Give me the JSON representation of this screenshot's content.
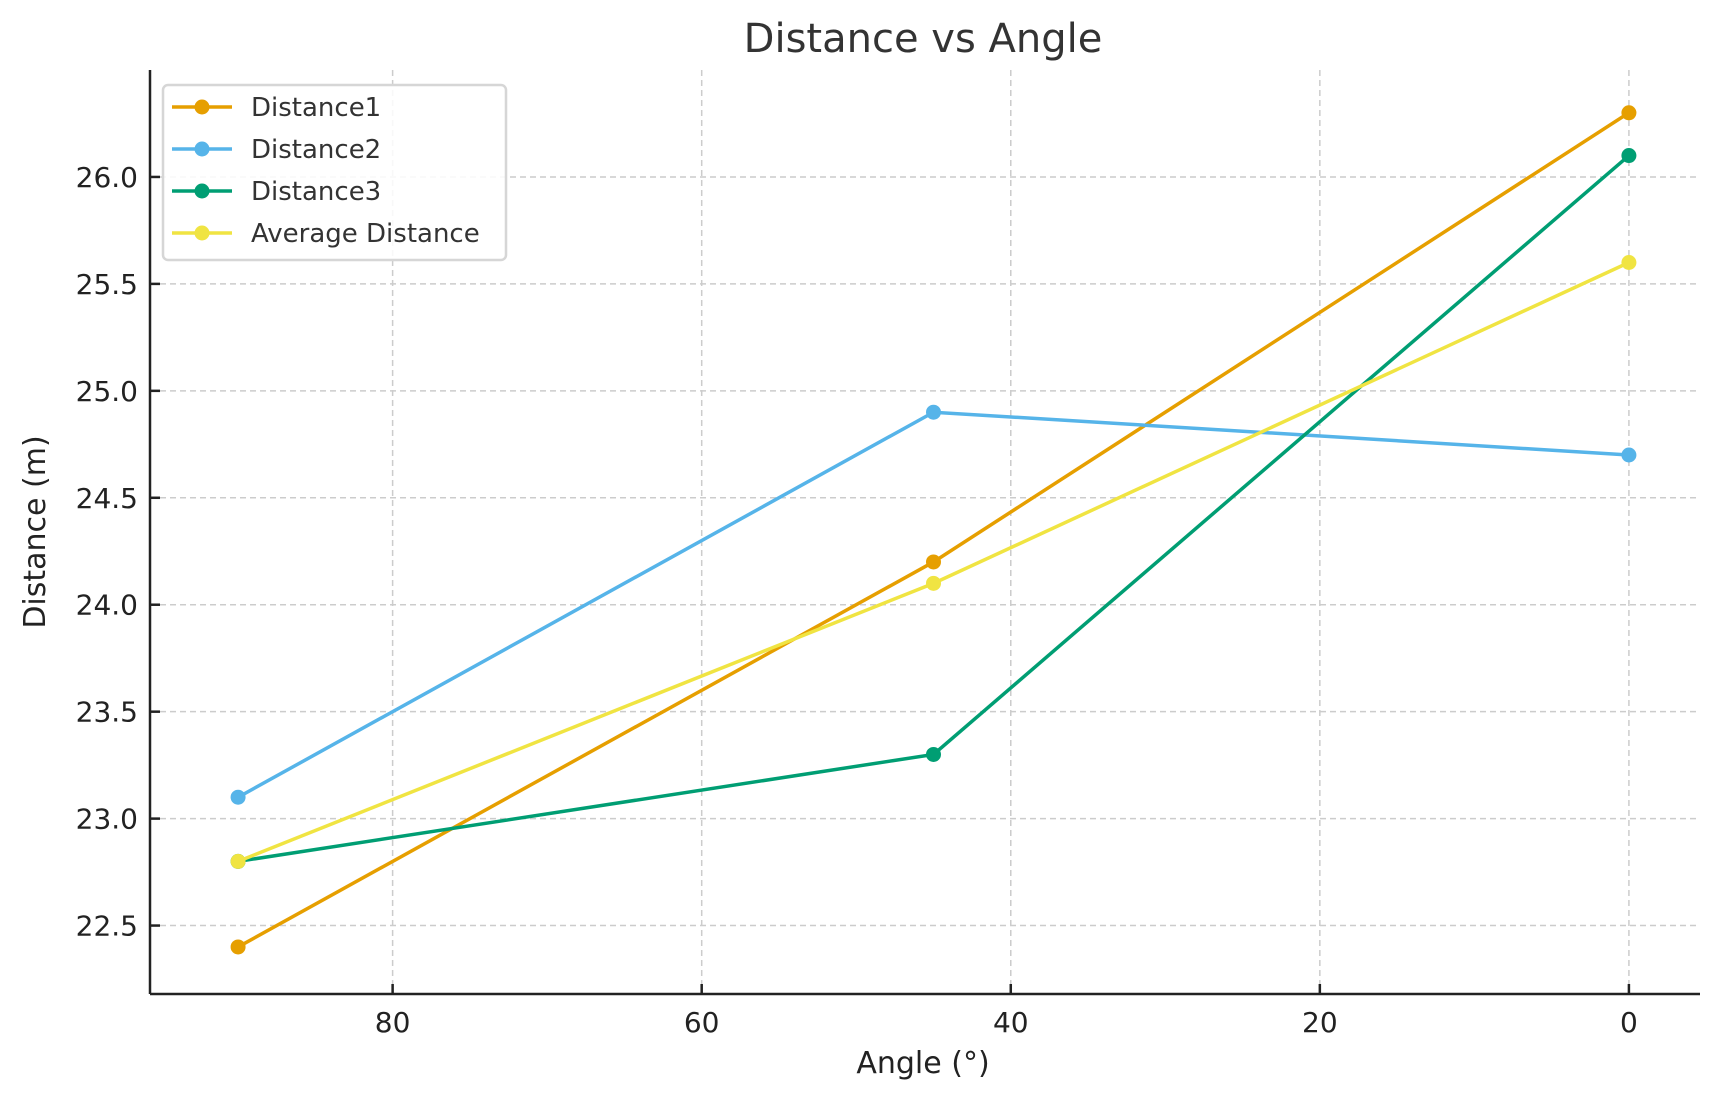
{
  "chart_data": {
    "type": "line",
    "title": "Distance vs Angle",
    "xlabel": "Angle (°)",
    "ylabel": "Distance (m)",
    "x": [
      90,
      45,
      0
    ],
    "xlim": [
      95.7,
      -4.6
    ],
    "ylim": [
      22.18,
      26.5
    ],
    "xticks": [
      80,
      60,
      40,
      20,
      0
    ],
    "yticks": [
      "22.5",
      "23.0",
      "23.5",
      "24.0",
      "24.5",
      "25.0",
      "25.5",
      "26.0"
    ],
    "grid": true,
    "legend_position": "top-left",
    "series": [
      {
        "name": "Distance1",
        "color": "#E69F00",
        "values": [
          22.4,
          24.2,
          26.3
        ]
      },
      {
        "name": "Distance2",
        "color": "#56B4E9",
        "values": [
          23.1,
          24.9,
          24.7
        ]
      },
      {
        "name": "Distance3",
        "color": "#009E73",
        "values": [
          22.8,
          23.3,
          26.1
        ]
      },
      {
        "name": "Average Distance",
        "color": "#F0E442",
        "values": [
          22.8,
          24.1,
          25.6
        ]
      }
    ]
  }
}
